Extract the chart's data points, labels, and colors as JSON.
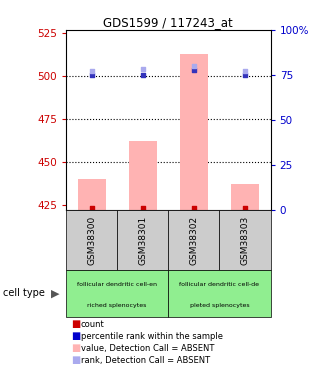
{
  "title": "GDS1599 / 117243_at",
  "samples": [
    "GSM38300",
    "GSM38301",
    "GSM38302",
    "GSM38303"
  ],
  "ylim_left": [
    422,
    527
  ],
  "ylim_right": [
    0,
    100
  ],
  "yticks_left": [
    425,
    450,
    475,
    500,
    525
  ],
  "yticks_right": [
    0,
    25,
    50,
    75,
    100
  ],
  "bar_values": [
    440,
    462,
    513,
    437
  ],
  "bar_bottom": 422,
  "bar_color": "#ffb3b3",
  "blue_dot_values": [
    75,
    75,
    78,
    75
  ],
  "blue_dot_color": "#3333bb",
  "light_blue_dot_values": [
    503,
    504,
    506,
    503
  ],
  "light_blue_dot_color": "#aaaaee",
  "red_dot_values": [
    423,
    423,
    423,
    423
  ],
  "red_dot_color": "#cc0000",
  "group1_label_top": "follicular dendritic cell-en",
  "group1_label_bottom": "riched splenocytes",
  "group2_label_top": "follicular dendritic cell-de",
  "group2_label_bottom": "pleted splenocytes",
  "group_color": "#90ee90",
  "sample_box_color": "#cccccc",
  "cell_type_label": "cell type",
  "left_ytick_color": "#cc0000",
  "right_ytick_color": "#0000cc",
  "legend_items": [
    {
      "color": "#cc0000",
      "label": "count"
    },
    {
      "color": "#0000cc",
      "label": "percentile rank within the sample"
    },
    {
      "color": "#ffb3b3",
      "label": "value, Detection Call = ABSENT"
    },
    {
      "color": "#aaaaee",
      "label": "rank, Detection Call = ABSENT"
    }
  ]
}
